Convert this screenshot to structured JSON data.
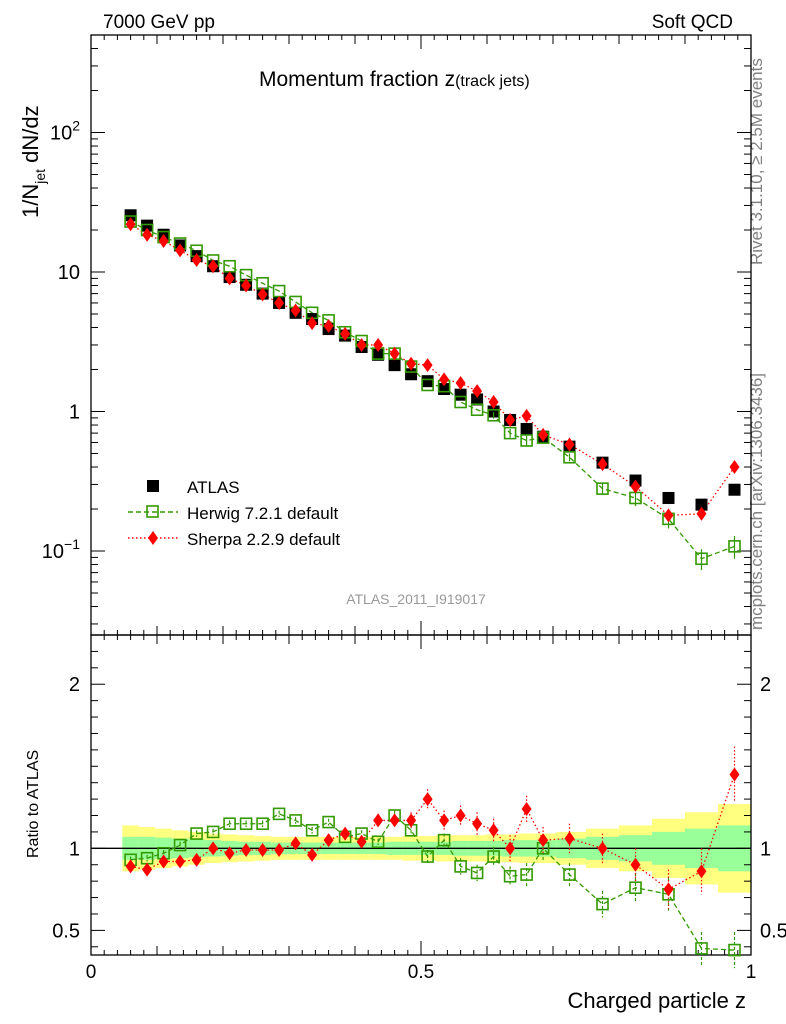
{
  "header": {
    "energy": "7000 GeV pp",
    "category": "Soft QCD"
  },
  "side_labels": {
    "rivet": "Rivet 3.1.10, ≥ 2.5M events",
    "mcplots": "mcplots.cern.ch [arXiv:1306.3436]"
  },
  "chart_data": [
    {
      "type": "scatter",
      "title_main": "Momentum fraction z",
      "title_sub": "(track jets)",
      "ylabel_main": "1/N",
      "ylabel_sub": "jet",
      "ylabel_rest": " dN/dz",
      "yscale": "log",
      "ylim": [
        0.025,
        500
      ],
      "xlim": [
        0,
        1
      ],
      "ytick_labels": [
        "10",
        "−1",
        "1",
        "10",
        "10",
        "2"
      ],
      "ytick_values": [
        0.1,
        1,
        10,
        100
      ],
      "analysis_tag": "ATLAS_2011_I919017",
      "x": [
        0.06,
        0.085,
        0.11,
        0.135,
        0.16,
        0.185,
        0.21,
        0.235,
        0.26,
        0.285,
        0.31,
        0.335,
        0.36,
        0.385,
        0.41,
        0.435,
        0.46,
        0.485,
        0.51,
        0.535,
        0.56,
        0.585,
        0.61,
        0.635,
        0.66,
        0.685,
        0.725,
        0.775,
        0.825,
        0.875,
        0.925,
        0.975
      ],
      "series": [
        {
          "name": "ATLAS",
          "color": "#000000",
          "marker": "square-filled",
          "values": [
            25.5,
            21.5,
            18.5,
            15.5,
            13.0,
            11.0,
            9.2,
            8.1,
            7.0,
            6.0,
            5.1,
            4.6,
            3.9,
            3.5,
            2.9,
            2.55,
            2.15,
            1.85,
            1.65,
            1.45,
            1.32,
            1.22,
            1.0,
            0.87,
            0.75,
            0.66,
            0.56,
            0.43,
            0.32,
            0.24,
            0.215,
            0.275
          ]
        },
        {
          "name": "Herwig 7.2.1 default",
          "color": "#339900",
          "marker": "square-open",
          "line": "dashed",
          "values": [
            23.0,
            20.0,
            17.8,
            16.0,
            14.2,
            12.1,
            11.0,
            9.5,
            8.3,
            7.3,
            6.1,
            5.1,
            4.5,
            3.7,
            3.2,
            2.6,
            2.6,
            2.1,
            1.55,
            1.52,
            1.17,
            1.03,
            0.94,
            0.7,
            0.62,
            0.65,
            0.47,
            0.28,
            0.24,
            0.17,
            0.088,
            0.108
          ],
          "errors": [
            0,
            0,
            0,
            0,
            0,
            0,
            0,
            0,
            0,
            0,
            0,
            0,
            0,
            0,
            0,
            0,
            0,
            0,
            0,
            0,
            0,
            0,
            0.05,
            0.05,
            0.05,
            0.04,
            0.03,
            0.025,
            0.03,
            0.025,
            0.015,
            0.02
          ]
        },
        {
          "name": "Sherpa 2.2.9 default",
          "color": "#ff0000",
          "marker": "diamond",
          "line": "dotted",
          "values": [
            22.0,
            18.5,
            16.7,
            14.3,
            12.2,
            11.0,
            9.0,
            8.0,
            6.9,
            6.0,
            5.3,
            4.3,
            4.1,
            3.6,
            3.0,
            3.0,
            2.6,
            2.2,
            2.15,
            1.7,
            1.6,
            1.4,
            1.17,
            0.87,
            0.93,
            0.68,
            0.58,
            0.42,
            0.29,
            0.18,
            0.185,
            0.4
          ]
        }
      ]
    },
    {
      "type": "scatter",
      "ylabel": "Ratio to ATLAS",
      "xlabel": "Charged particle z",
      "ylim": [
        0.35,
        2.3
      ],
      "xlim": [
        0,
        1
      ],
      "xtick_labels": [
        "0",
        "0.5",
        "1"
      ],
      "ytick_labels": [
        "0.5",
        "1",
        "2"
      ],
      "ytick_values": [
        0.5,
        1,
        2
      ],
      "band_color_inner": "#99ff99",
      "band_color_outer": "#ffff80",
      "band_inner_halfwidth": [
        0.07,
        0.07,
        0.065,
        0.06,
        0.055,
        0.05,
        0.045,
        0.04,
        0.04,
        0.035,
        0.035,
        0.035,
        0.035,
        0.035,
        0.035,
        0.035,
        0.04,
        0.04,
        0.04,
        0.04,
        0.045,
        0.045,
        0.045,
        0.05,
        0.05,
        0.05,
        0.06,
        0.07,
        0.08,
        0.1,
        0.12,
        0.14
      ],
      "band_outer_halfwidth": [
        0.14,
        0.13,
        0.12,
        0.11,
        0.1,
        0.09,
        0.085,
        0.08,
        0.075,
        0.07,
        0.07,
        0.07,
        0.07,
        0.07,
        0.07,
        0.07,
        0.07,
        0.075,
        0.075,
        0.08,
        0.08,
        0.08,
        0.085,
        0.085,
        0.09,
        0.09,
        0.1,
        0.12,
        0.14,
        0.18,
        0.22,
        0.27
      ],
      "series": [
        {
          "name": "Herwig 7.2.1 default",
          "color": "#339900",
          "values": [
            0.93,
            0.94,
            0.97,
            1.02,
            1.09,
            1.1,
            1.15,
            1.15,
            1.15,
            1.21,
            1.17,
            1.11,
            1.16,
            1.07,
            1.09,
            1.04,
            1.2,
            1.11,
            0.95,
            1.05,
            0.89,
            0.85,
            0.95,
            0.83,
            0.84,
            1.0,
            0.84,
            0.66,
            0.76,
            0.72,
            0.39,
            0.38
          ],
          "errors": [
            0.02,
            0.02,
            0.02,
            0.02,
            0.02,
            0.02,
            0.02,
            0.02,
            0.02,
            0.02,
            0.02,
            0.02,
            0.02,
            0.02,
            0.02,
            0.02,
            0.03,
            0.03,
            0.04,
            0.04,
            0.05,
            0.05,
            0.06,
            0.06,
            0.07,
            0.07,
            0.07,
            0.08,
            0.09,
            0.1,
            0.1,
            0.11
          ]
        },
        {
          "name": "Sherpa 2.2.9 default",
          "color": "#ff0000",
          "values": [
            0.89,
            0.87,
            0.92,
            0.92,
            0.93,
            1.0,
            0.97,
            0.99,
            0.99,
            0.99,
            1.03,
            0.96,
            1.05,
            1.09,
            1.04,
            1.17,
            1.17,
            1.17,
            1.3,
            1.17,
            1.2,
            1.15,
            1.11,
            1.0,
            1.24,
            1.05,
            1.06,
            1.0,
            0.9,
            0.75,
            0.86,
            1.45
          ],
          "errors": [
            0.02,
            0.02,
            0.02,
            0.02,
            0.02,
            0.02,
            0.02,
            0.02,
            0.02,
            0.02,
            0.02,
            0.02,
            0.03,
            0.03,
            0.03,
            0.04,
            0.04,
            0.05,
            0.06,
            0.06,
            0.06,
            0.07,
            0.07,
            0.08,
            0.08,
            0.08,
            0.09,
            0.09,
            0.1,
            0.12,
            0.14,
            0.17
          ]
        }
      ]
    }
  ]
}
